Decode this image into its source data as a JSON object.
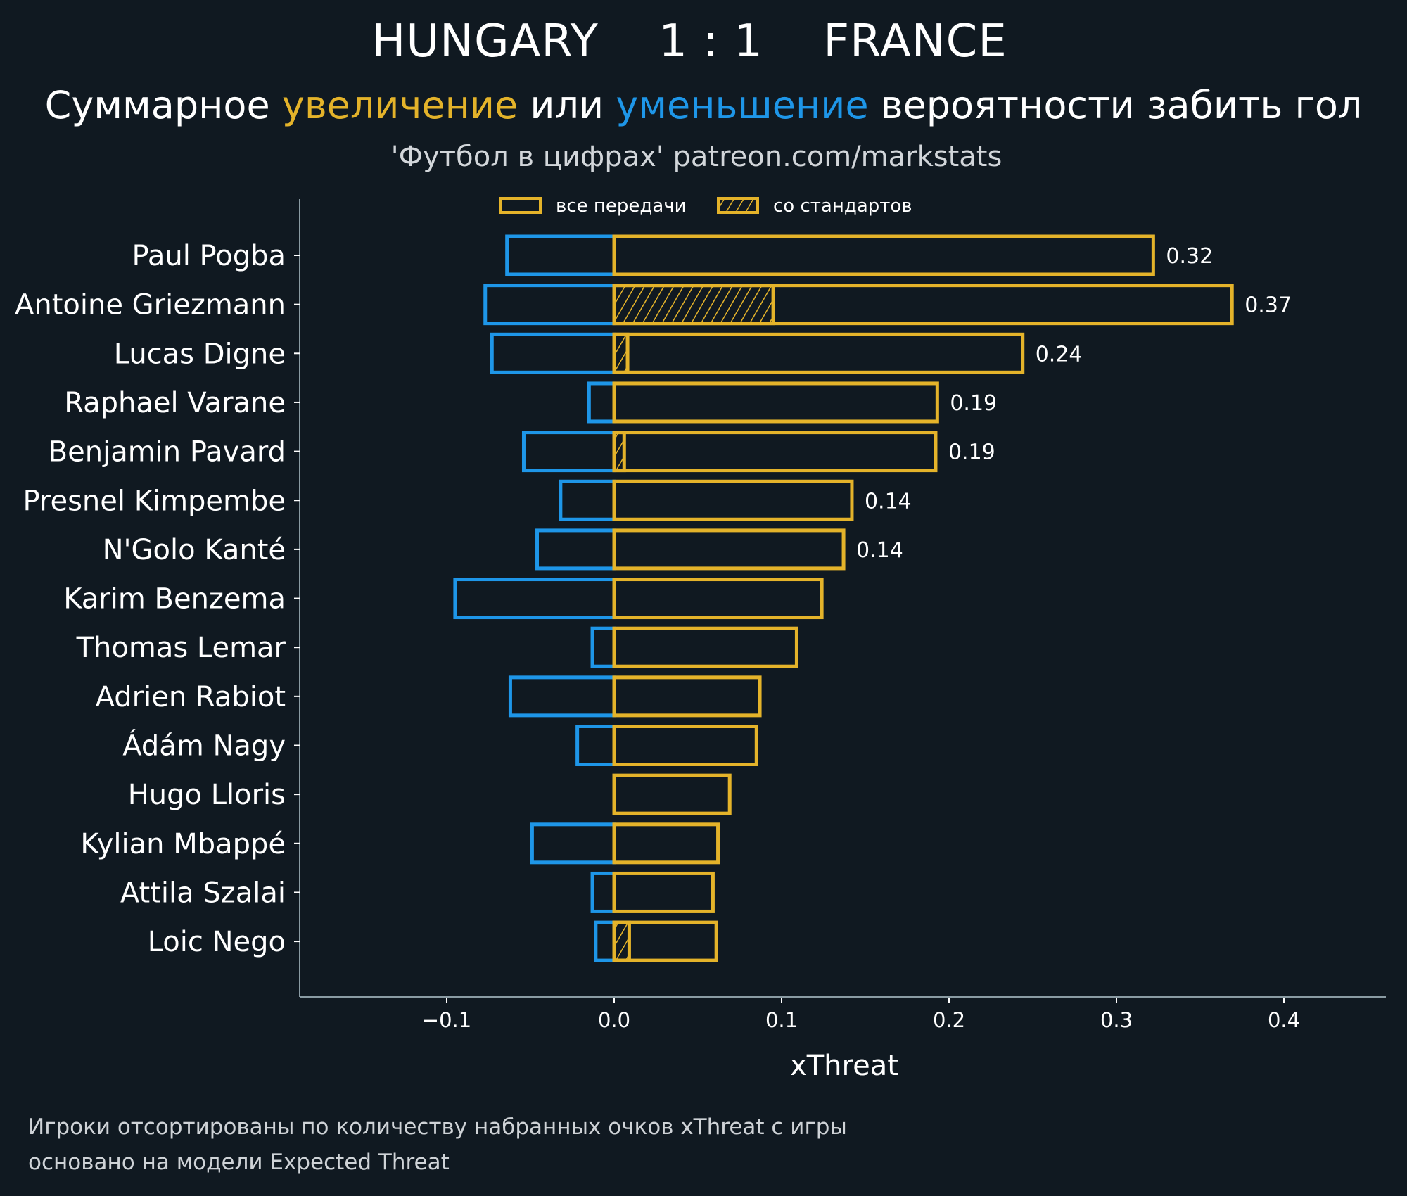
{
  "header": {
    "title": "HUNGARY    1 : 1    FRANCE",
    "subtitle_parts": [
      "Суммарное ",
      "увеличение",
      " или ",
      "уменьшение",
      " вероятности забить гол"
    ],
    "source": "'Футбол в цифрах' patreon.com/markstats"
  },
  "footer": {
    "line1": "Игроки отсортированы по количеству набранных очков xThreat с игры",
    "line2": "основано на модели Expected Threat"
  },
  "colors": {
    "background": "#101921",
    "increase": "#e4b32a",
    "decrease": "#1e96e8",
    "axis": "#8a9ba3"
  },
  "chart_data": {
    "type": "bar",
    "orientation": "horizontal",
    "title": "HUNGARY 1:1 FRANCE",
    "xlabel": "xThreat",
    "ylabel": "",
    "xlim": [
      -0.187,
      0.46
    ],
    "xticks": [
      -0.1,
      0.0,
      0.1,
      0.2,
      0.3,
      0.4
    ],
    "xtick_labels": [
      "−0.1",
      "0.0",
      "0.1",
      "0.2",
      "0.3",
      "0.4"
    ],
    "grid": false,
    "legend": {
      "placement": "top-center",
      "entries": [
        {
          "label": "все передачи",
          "style": "outline"
        },
        {
          "label": "со стандартов",
          "style": "hatched"
        }
      ]
    },
    "categories": [
      "Paul Pogba",
      "Antoine Griezmann",
      "Lucas Digne",
      "Raphael Varane",
      "Benjamin Pavard",
      "Presnel Kimpembe",
      "N'Golo Kanté",
      "Karim Benzema",
      "Thomas Lemar",
      "Adrien Rabiot",
      "Ádám Nagy",
      "Hugo Lloris",
      "Kylian Mbappé",
      "Attila Szalai",
      "Loic Nego"
    ],
    "series": [
      {
        "name": "уменьшение",
        "values": [
          -0.064,
          -0.077,
          -0.073,
          -0.015,
          -0.054,
          -0.032,
          -0.046,
          -0.095,
          -0.013,
          -0.062,
          -0.022,
          0.0,
          -0.049,
          -0.013,
          -0.011
        ]
      },
      {
        "name": "увеличение (все передачи)",
        "values": [
          0.322,
          0.369,
          0.244,
          0.193,
          0.192,
          0.142,
          0.137,
          0.124,
          0.109,
          0.087,
          0.085,
          0.069,
          0.062,
          0.059,
          0.061
        ]
      },
      {
        "name": "увеличение (со стандартов)",
        "values": [
          0.0,
          0.095,
          0.008,
          0.0,
          0.006,
          0.0,
          0.0,
          0.0,
          0.0,
          0.0,
          0.0,
          0.0,
          0.0,
          0.0,
          0.009
        ]
      }
    ],
    "value_labels": [
      "0.32",
      "0.37",
      "0.24",
      "0.19",
      "0.19",
      "0.14",
      "0.14",
      null,
      null,
      null,
      null,
      null,
      null,
      null,
      null
    ]
  }
}
